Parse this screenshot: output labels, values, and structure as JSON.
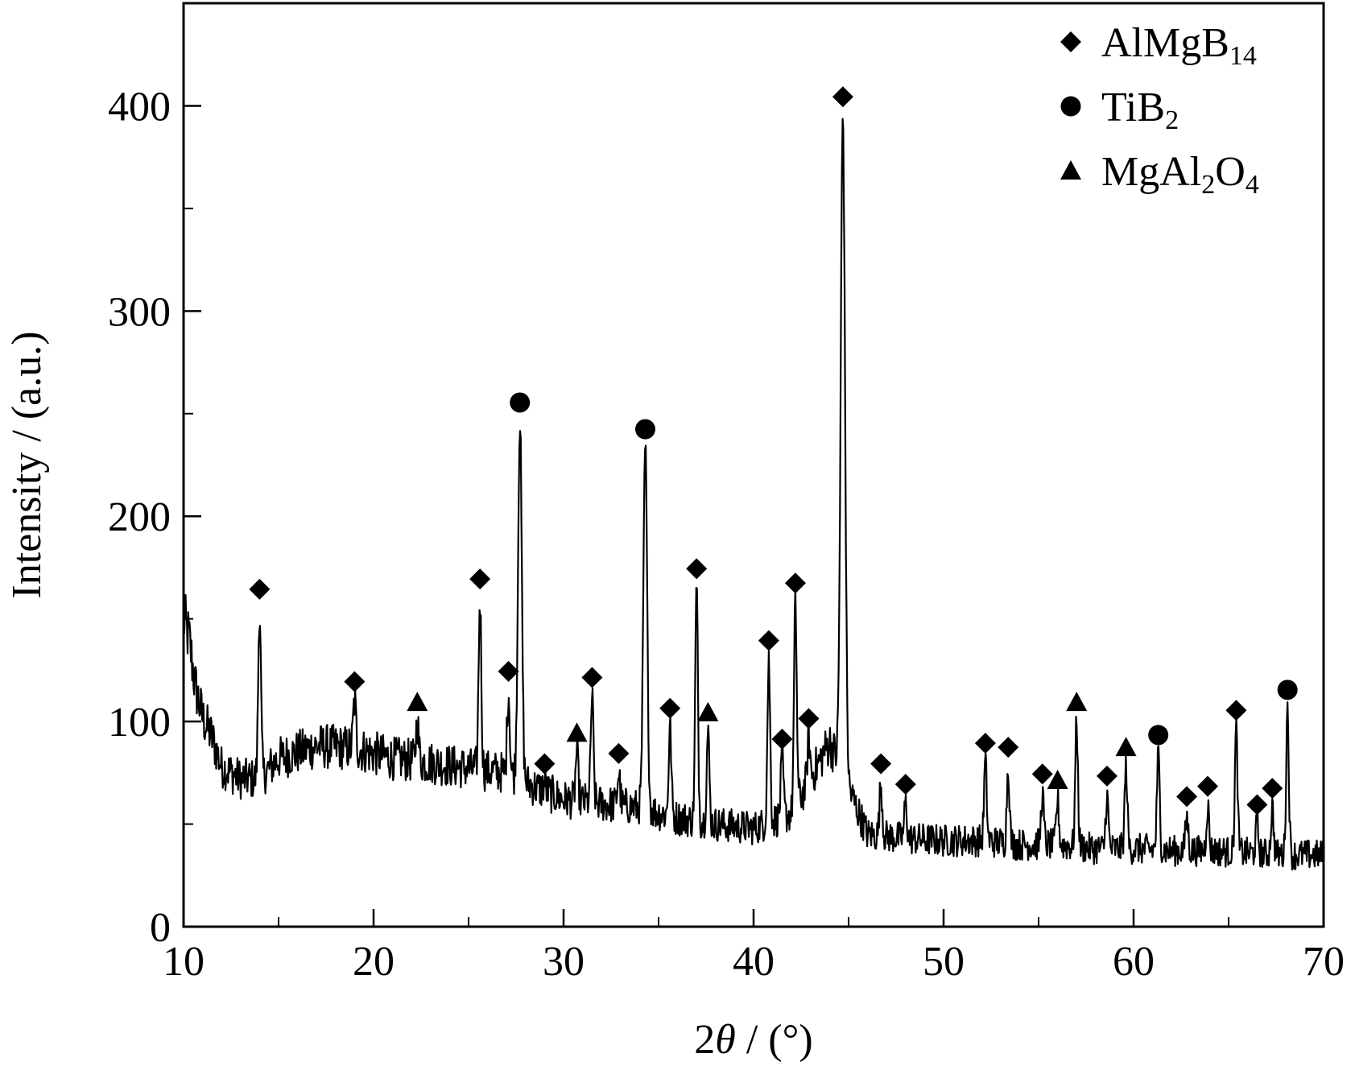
{
  "chart_data": {
    "type": "line",
    "xlabel": {
      "prefix": "2",
      "symbol": "θ",
      "suffix": " / (°)"
    },
    "ylabel": "Intensity / (a.u.)",
    "xlim": [
      10,
      70
    ],
    "ylim": [
      0,
      450
    ],
    "x_ticks": [
      10,
      20,
      30,
      40,
      50,
      60,
      70
    ],
    "y_ticks": [
      0,
      100,
      200,
      300,
      400
    ],
    "x_minor_step": 5,
    "y_minor_step": 50,
    "grid": false,
    "legend_position": "top-right",
    "legend": [
      {
        "marker": "diamond",
        "base": "AlMgB",
        "parts": [
          {
            "sub": "14"
          }
        ]
      },
      {
        "marker": "circle",
        "base": "TiB",
        "parts": [
          {
            "sub": "2"
          }
        ]
      },
      {
        "marker": "triangle",
        "base": "MgAl",
        "parts": [
          {
            "sub": "2"
          },
          {
            "text": "O"
          },
          {
            "sub": "4"
          }
        ]
      }
    ],
    "pattern_profile": {
      "x": [
        10.0,
        10.3,
        10.6,
        11.0,
        11.5,
        12.0,
        13.0,
        14.0,
        15.0,
        17.0,
        19.0,
        21.0,
        23.0,
        25.0,
        27.0,
        28.5,
        30.0,
        32.0,
        34.0,
        36.0,
        38.0,
        40.0,
        42.0,
        44.0,
        46.0,
        48.0,
        50.0,
        52.0,
        54.0,
        56.0,
        58.0,
        60.0,
        62.0,
        64.0,
        66.0,
        68.0,
        70.0
      ],
      "y": [
        150,
        140,
        118,
        102,
        92,
        78,
        72,
        72,
        82,
        88,
        87,
        82,
        80,
        77,
        75,
        68,
        62,
        60,
        58,
        53,
        50,
        48,
        55,
        90,
        45,
        43,
        42,
        42,
        40,
        40,
        38,
        38,
        37,
        37,
        36,
        35,
        35
      ]
    },
    "peaks": [
      {
        "x": 14.0,
        "y": 155,
        "phase": "AlMgB14"
      },
      {
        "x": 19.0,
        "y": 110,
        "phase": "AlMgB14"
      },
      {
        "x": 22.3,
        "y": 100,
        "phase": "MgAl2O4"
      },
      {
        "x": 25.6,
        "y": 160,
        "phase": "AlMgB14"
      },
      {
        "x": 27.1,
        "y": 115,
        "phase": "AlMgB14"
      },
      {
        "x": 27.7,
        "y": 246,
        "phase": "TiB2"
      },
      {
        "x": 29.0,
        "y": 70,
        "phase": "AlMgB14"
      },
      {
        "x": 30.7,
        "y": 85,
        "phase": "MgAl2O4"
      },
      {
        "x": 31.5,
        "y": 112,
        "phase": "AlMgB14"
      },
      {
        "x": 32.9,
        "y": 75,
        "phase": "AlMgB14"
      },
      {
        "x": 34.3,
        "y": 233,
        "phase": "TiB2"
      },
      {
        "x": 35.6,
        "y": 97,
        "phase": "AlMgB14"
      },
      {
        "x": 37.0,
        "y": 165,
        "phase": "AlMgB14"
      },
      {
        "x": 37.6,
        "y": 95,
        "phase": "MgAl2O4"
      },
      {
        "x": 40.8,
        "y": 130,
        "phase": "AlMgB14"
      },
      {
        "x": 41.5,
        "y": 82,
        "phase": "AlMgB14"
      },
      {
        "x": 42.2,
        "y": 158,
        "phase": "AlMgB14"
      },
      {
        "x": 42.9,
        "y": 92,
        "phase": "AlMgB14"
      },
      {
        "x": 44.7,
        "y": 395,
        "phase": "AlMgB14"
      },
      {
        "x": 46.7,
        "y": 70,
        "phase": "AlMgB14"
      },
      {
        "x": 48.0,
        "y": 60,
        "phase": "AlMgB14"
      },
      {
        "x": 52.2,
        "y": 80,
        "phase": "AlMgB14"
      },
      {
        "x": 53.4,
        "y": 78,
        "phase": "AlMgB14"
      },
      {
        "x": 55.2,
        "y": 65,
        "phase": "AlMgB14"
      },
      {
        "x": 56.0,
        "y": 62,
        "phase": "MgAl2O4"
      },
      {
        "x": 57.0,
        "y": 100,
        "phase": "MgAl2O4"
      },
      {
        "x": 58.6,
        "y": 64,
        "phase": "AlMgB14"
      },
      {
        "x": 59.6,
        "y": 78,
        "phase": "MgAl2O4"
      },
      {
        "x": 61.3,
        "y": 84,
        "phase": "TiB2"
      },
      {
        "x": 62.8,
        "y": 54,
        "phase": "AlMgB14"
      },
      {
        "x": 63.9,
        "y": 59,
        "phase": "AlMgB14"
      },
      {
        "x": 65.4,
        "y": 96,
        "phase": "AlMgB14"
      },
      {
        "x": 66.5,
        "y": 50,
        "phase": "AlMgB14"
      },
      {
        "x": 67.3,
        "y": 58,
        "phase": "AlMgB14"
      },
      {
        "x": 68.1,
        "y": 106,
        "phase": "TiB2"
      }
    ]
  }
}
